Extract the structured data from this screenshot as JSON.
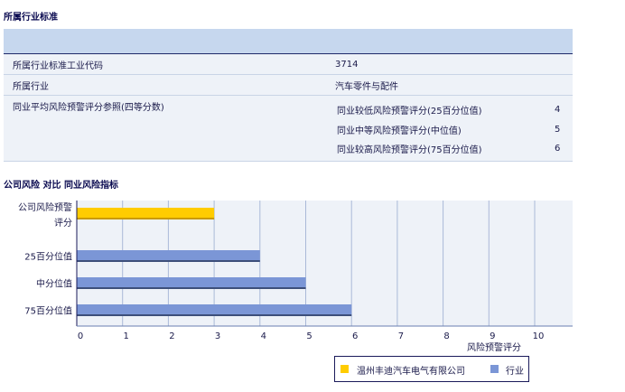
{
  "section1": {
    "title": "所属行业标准",
    "rows": [
      {
        "label": "所属行业标准工业代码",
        "value": "3714"
      },
      {
        "label": "所属行业",
        "value": "汽车零件与配件"
      }
    ],
    "reference": {
      "label": "同业平均风险预警评分参照(四等分数)",
      "items": [
        {
          "label": "同业较低风险预警评分(25百分位值)",
          "value": "4"
        },
        {
          "label": "同业中等风险预警评分(中位值)",
          "value": "5"
        },
        {
          "label": "同业较高风险预警评分(75百分位值)",
          "value": "6"
        }
      ]
    }
  },
  "section2": {
    "title": "公司风险 对比 同业风险指标"
  },
  "chart_data": {
    "type": "bar",
    "orientation": "horizontal",
    "categories": [
      "公司风险预警评分",
      "25百分位值",
      "中分位值",
      "75百分位值"
    ],
    "series": [
      {
        "name": "温州丰迪汽车电气有限公司",
        "color": "#ffcc00",
        "values": [
          3,
          null,
          null,
          null
        ]
      },
      {
        "name": "行业",
        "color": "#7b96d6",
        "values": [
          null,
          4,
          5,
          6
        ]
      }
    ],
    "xlabel": "风险预警评分",
    "xlim": [
      0,
      11
    ],
    "xticks": [
      "0",
      "1",
      "2",
      "3",
      "4",
      "5",
      "6",
      "7",
      "8",
      "9",
      "10"
    ],
    "grid": true,
    "legend": "bottom-right"
  }
}
